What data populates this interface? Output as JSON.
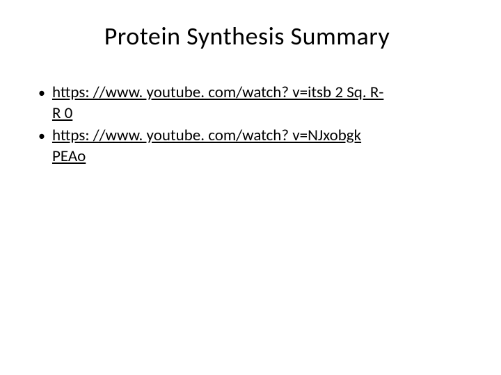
{
  "slide": {
    "title": "Protein Synthesis Summary",
    "title_fontsize": 36,
    "title_color": "#000000",
    "background_color": "#ffffff",
    "bullets": [
      {
        "marker": "•",
        "line1": "https: //www. youtube. com/watch? v=itsb 2 Sq. R-",
        "line2": "R 0"
      },
      {
        "marker": "•",
        "line1": "https: //www. youtube. com/watch? v=NJxobgk",
        "line2": "PEAo"
      }
    ],
    "body_fontsize": 23,
    "link_color": "#000000"
  }
}
